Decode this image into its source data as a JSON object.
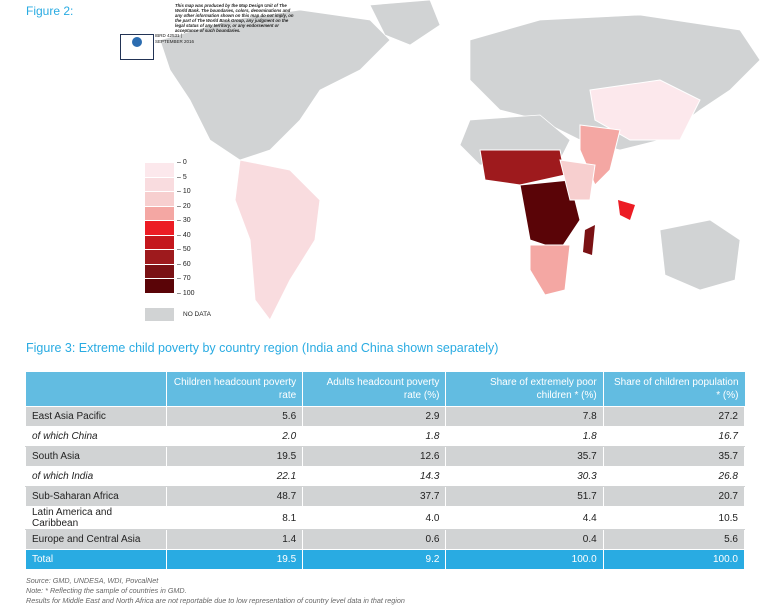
{
  "figure2": {
    "label": "Figure 2:",
    "note": "This map was produced by the Map Design Unit of The World Bank. The boundaries, colors, denominations and any other information shown on this map do not imply, on the part of The World Bank Group, any judgment on the legal status of any territory, or any endorsement or acceptance of such boundaries.",
    "ibrd": "IBRD 42531 |",
    "date": "SEPTEMBER 2016",
    "legend": {
      "ticks": [
        "0",
        "5",
        "10",
        "20",
        "30",
        "40",
        "50",
        "60",
        "70",
        "100"
      ],
      "colors": [
        "#fce8ec",
        "#f9dcdf",
        "#f7cfcf",
        "#f4a7a3",
        "#ec1c24",
        "#c4161c",
        "#9e1a1d",
        "#7a1114",
        "#5a0407"
      ],
      "no_data_label": "NO DATA",
      "no_data_color": "#d1d3d4"
    }
  },
  "figure3": {
    "title": "Figure 3: Extreme child poverty by country region (India and China shown separately)",
    "columns": [
      "",
      "Children headcount poverty rate",
      "Adults headcount poverty rate (%)",
      "Share of extremely poor children * (%)",
      "Share of children population * (%)"
    ],
    "rows": [
      [
        "East Asia Pacific",
        "5.6",
        "2.9",
        "7.8",
        "27.2"
      ],
      [
        "of which China",
        "2.0",
        "1.8",
        "1.8",
        "16.7"
      ],
      [
        "South Asia",
        "19.5",
        "12.6",
        "35.7",
        "35.7"
      ],
      [
        "of which India",
        "22.1",
        "14.3",
        "30.3",
        "26.8"
      ],
      [
        "Sub-Saharan Africa",
        "48.7",
        "37.7",
        "51.7",
        "20.7"
      ],
      [
        "Latin America and Caribbean",
        "8.1",
        "4.0",
        "4.4",
        "10.5"
      ],
      [
        "Europe and Central Asia",
        "1.4",
        "0.6",
        "0.4",
        "5.6"
      ],
      [
        "Total",
        "19.5",
        "9.2",
        "100.0",
        "100.0"
      ]
    ]
  },
  "footnotes": [
    "Source: GMD, UNDESA, WDI, PovcalNet",
    "Note: * Reflecting the sample of countries in GMD.",
    "Results for Middle East and North Africa are not reportable due to low representation of country level data in that region"
  ]
}
